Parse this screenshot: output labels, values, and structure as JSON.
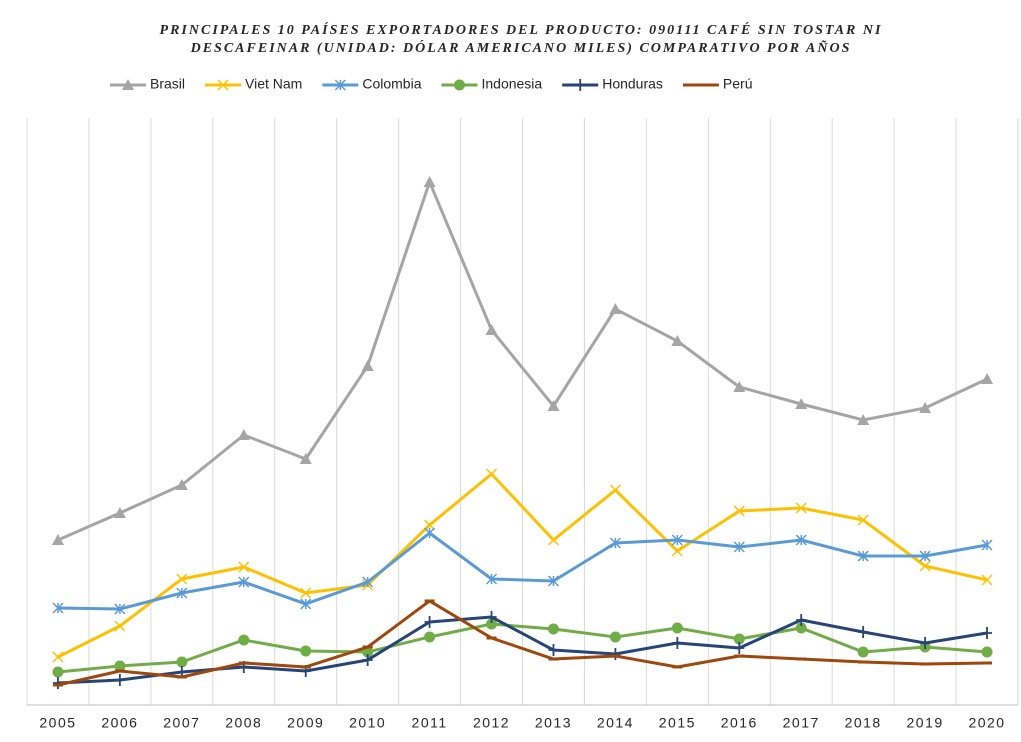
{
  "chart_data": {
    "type": "line",
    "title": [
      "PRINCIPALES 10 PAÍSES EXPORTADORES DEL PRODUCTO: 090111 CAFÉ SIN TOSTAR NI",
      "DESCAFEINAR (UNIDAD: DÓLAR AMERICANO MILES) COMPARATIVO POR AÑOS"
    ],
    "categories": [
      "2005",
      "2006",
      "2007",
      "2008",
      "2009",
      "2010",
      "2011",
      "2012",
      "2013",
      "2014",
      "2015",
      "2016",
      "2017",
      "2018",
      "2019",
      "2020"
    ],
    "ylim": [
      0,
      9000000
    ],
    "grid": "vertical",
    "legend": "top",
    "series": [
      {
        "name": "Brasil",
        "color": "#a5a5a5",
        "marker": "triangle",
        "values": [
          2530000,
          2944000,
          3373000,
          4140000,
          3772000,
          5198000,
          8019000,
          5750000,
          4584000,
          6071000,
          5581000,
          4876000,
          4615000,
          4370000,
          4554000,
          4998000
        ]
      },
      {
        "name": "Viet Nam",
        "color": "#ffc000",
        "marker": "x",
        "values": [
          736000,
          1211000,
          1932000,
          2116000,
          1717000,
          1840000,
          2760000,
          3542000,
          2530000,
          3296000,
          2361000,
          2974000,
          3020000,
          2836000,
          2131000,
          1917000
        ]
      },
      {
        "name": "Colombia",
        "color": "#5b9bd5",
        "marker": "asterisk",
        "values": [
          1487000,
          1472000,
          1717000,
          1886000,
          1549000,
          1886000,
          2637000,
          1932000,
          1901000,
          2484000,
          2530000,
          2422000,
          2530000,
          2284000,
          2284000,
          2453000
        ]
      },
      {
        "name": "Indonesia",
        "color": "#70ad47",
        "marker": "circle",
        "values": [
          506000,
          598000,
          659000,
          997000,
          828000,
          813000,
          1043000,
          1242000,
          1165000,
          1043000,
          1181000,
          1012000,
          1181000,
          813000,
          889000,
          813000
        ]
      },
      {
        "name": "Honduras",
        "color": "#264478",
        "marker": "plus",
        "values": [
          337000,
          383000,
          506000,
          583000,
          521000,
          690000,
          1273000,
          1349000,
          843000,
          782000,
          951000,
          874000,
          1303000,
          1119000,
          951000,
          1104000
        ]
      },
      {
        "name": "Perú",
        "color": "#9e480e",
        "marker": "dash",
        "values": [
          307000,
          521000,
          429000,
          644000,
          583000,
          889000,
          1595000,
          1027000,
          705000,
          751000,
          583000,
          751000,
          705000,
          659000,
          629000,
          644000
        ]
      }
    ]
  }
}
